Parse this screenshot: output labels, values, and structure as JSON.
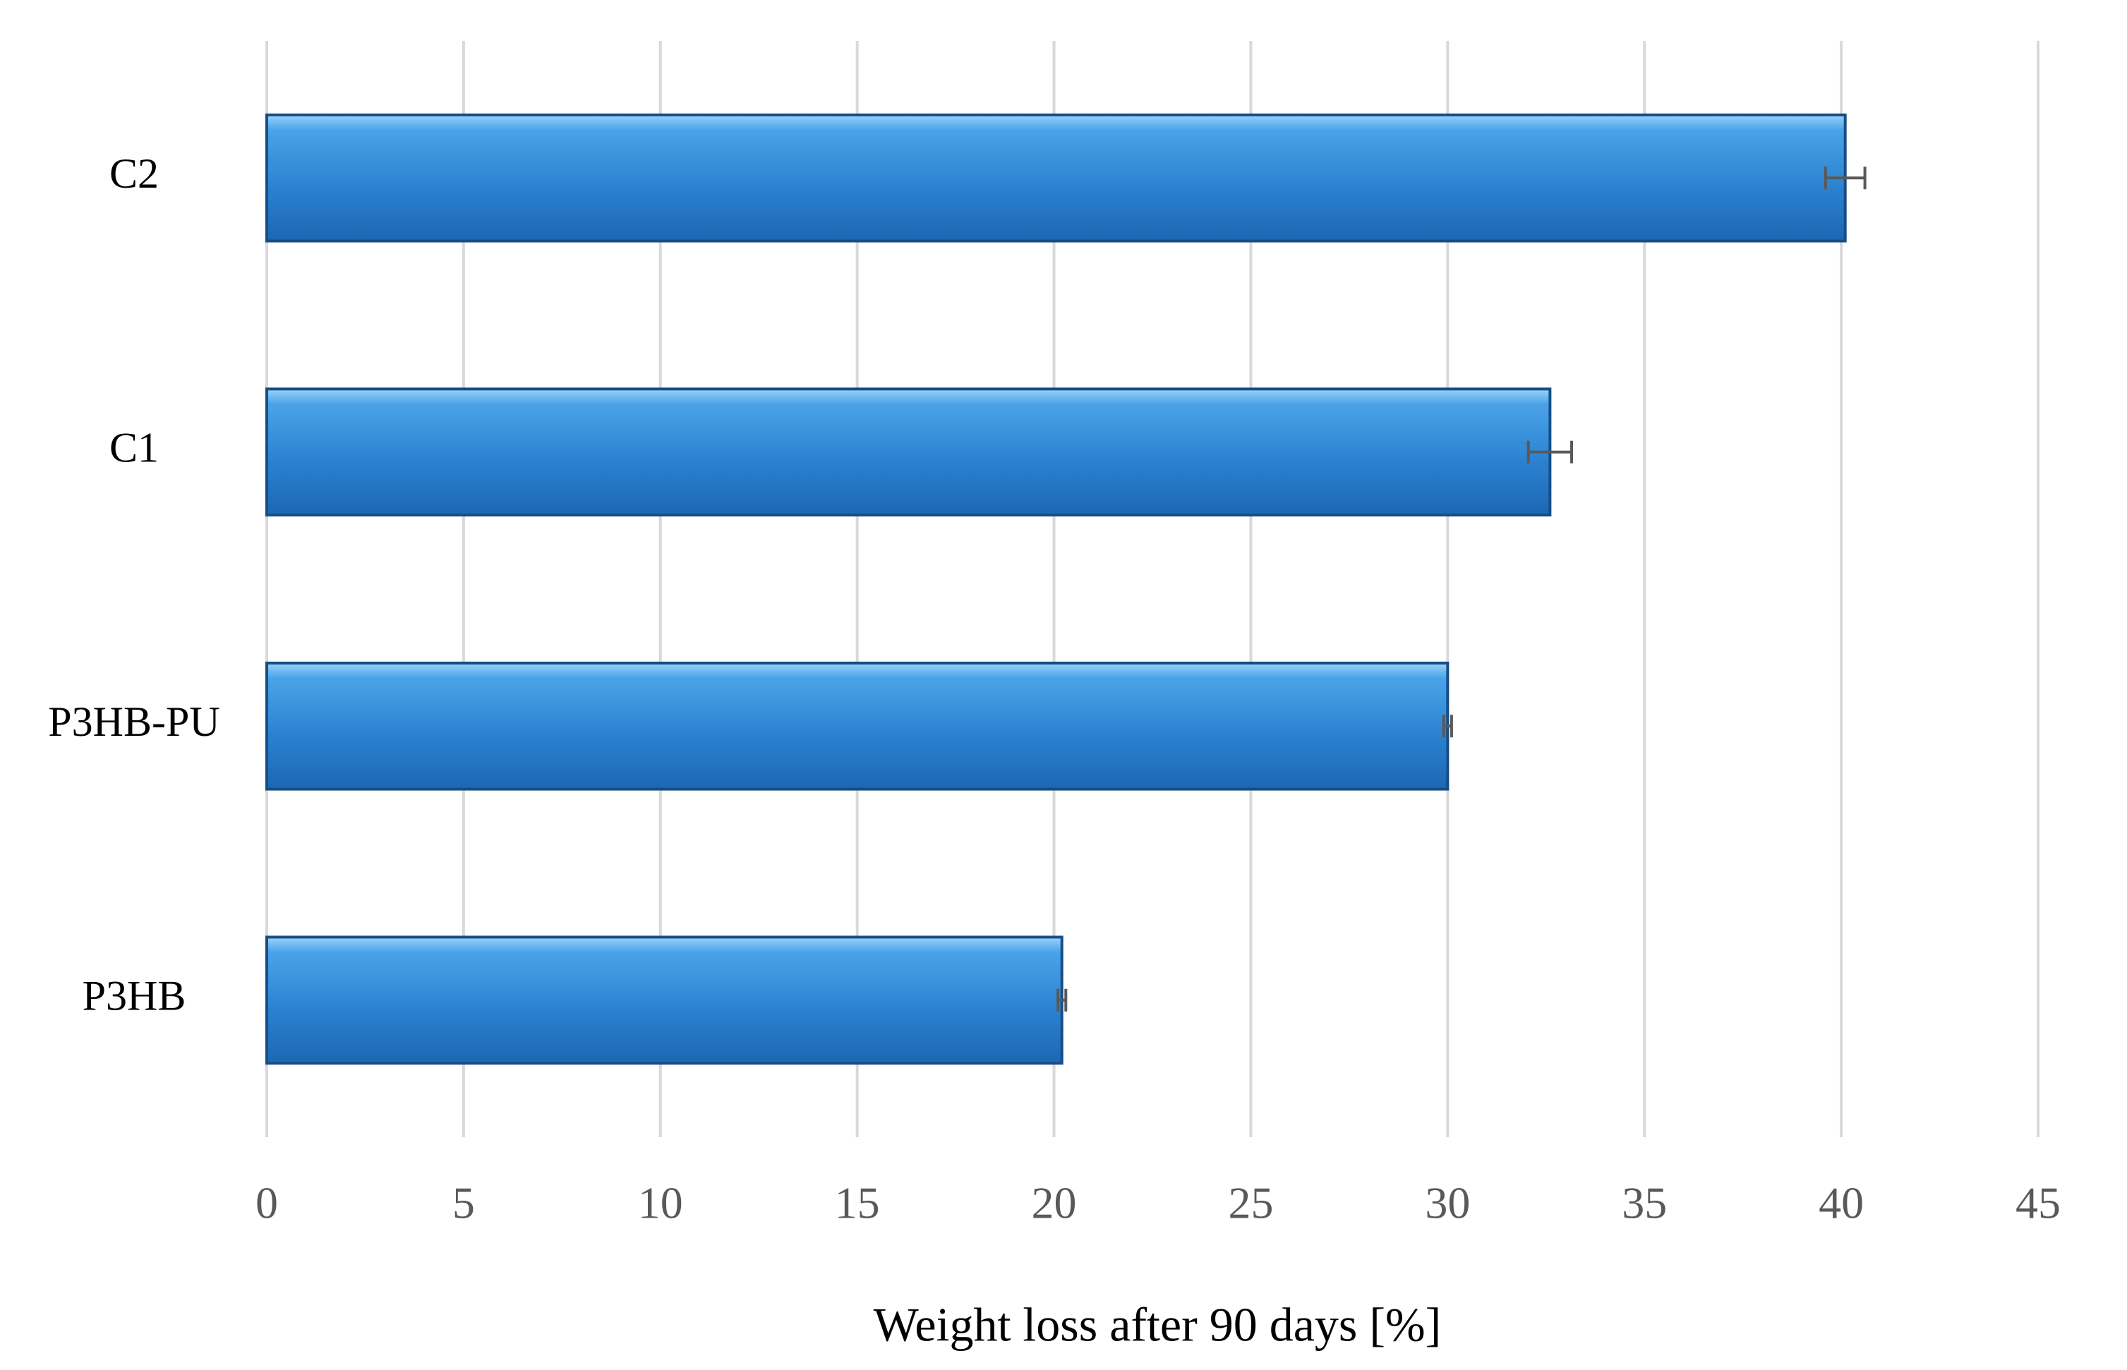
{
  "chart_data": {
    "type": "hbar",
    "categories": [
      "C2",
      "C1",
      "P3HB-PU",
      "P3HB"
    ],
    "values": [
      40.1,
      32.6,
      30.0,
      20.2
    ],
    "errors": [
      0.5,
      0.55,
      0.1,
      0.1
    ],
    "color": "#2f86d4",
    "xlabel": "Weight loss after 90 days [%]",
    "xlim": [
      0,
      45
    ],
    "xticks": [
      0,
      5,
      10,
      15,
      20,
      25,
      30,
      35,
      40,
      45
    ],
    "grid": true
  }
}
